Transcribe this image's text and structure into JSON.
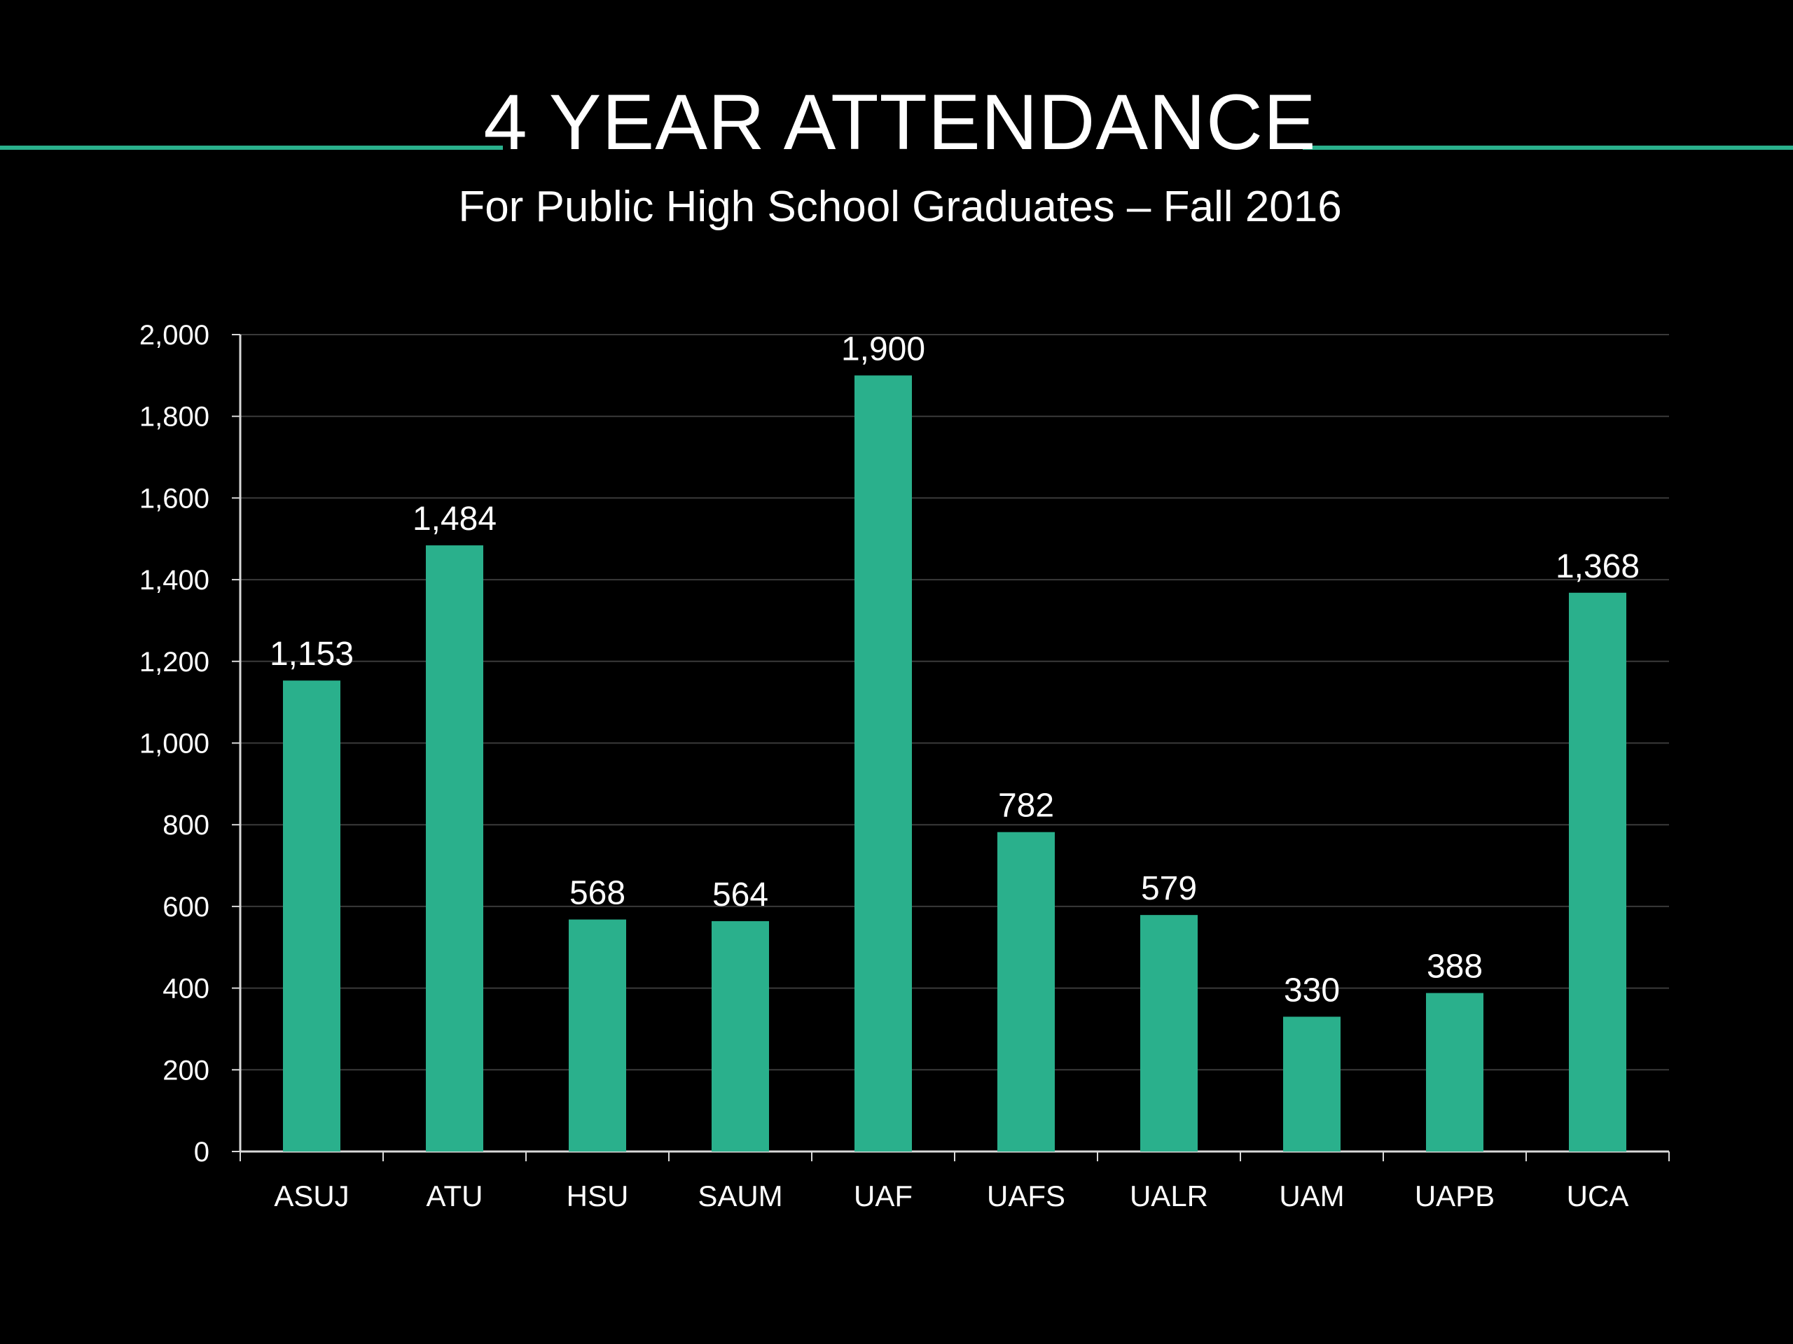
{
  "title": "4 YEAR ATTENDANCE",
  "subtitle": "For Public High School Graduates – Fall 2016",
  "colors": {
    "background": "#000000",
    "accent": "#2ab08c",
    "bar": "#2ab08c",
    "text": "#ffffff",
    "gridline": "#3a3a3a"
  },
  "chart_data": {
    "type": "bar",
    "title": "4 YEAR ATTENDANCE",
    "subtitle": "For Public High School Graduates – Fall 2016",
    "xlabel": "",
    "ylabel": "",
    "categories": [
      "ASUJ",
      "ATU",
      "HSU",
      "SAUM",
      "UAF",
      "UAFS",
      "UALR",
      "UAM",
      "UAPB",
      "UCA"
    ],
    "values": [
      1153,
      1484,
      568,
      564,
      1900,
      782,
      579,
      330,
      388,
      1368
    ],
    "value_labels": [
      "1,153",
      "1,484",
      "568",
      "564",
      "1,900",
      "782",
      "579",
      "330",
      "388",
      "1,368"
    ],
    "ylim": [
      0,
      2000
    ],
    "yticks": [
      0,
      200,
      400,
      600,
      800,
      1000,
      1200,
      1400,
      1600,
      1800,
      2000
    ],
    "ytick_labels": [
      "0",
      "200",
      "400",
      "600",
      "800",
      "1,000",
      "1,200",
      "1,400",
      "1,600",
      "1,800",
      "2,000"
    ],
    "grid": true,
    "legend": "none"
  }
}
